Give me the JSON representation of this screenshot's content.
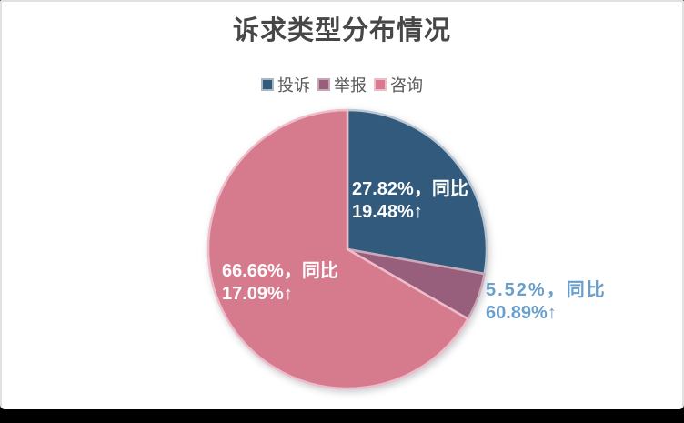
{
  "title": "诉求类型分布情况",
  "legend": {
    "items": [
      {
        "label": "投诉",
        "color": "#325a7c",
        "border_color": "#a6b8c6"
      },
      {
        "label": "举报",
        "color": "#985f7d",
        "border_color": "#c5a5b6"
      },
      {
        "label": "咨询",
        "color": "#d67b8e",
        "border_color": "#eebdc9"
      }
    ]
  },
  "chart_data": {
    "type": "pie",
    "title": "诉求类型分布情况",
    "legend_position": "top-center",
    "start_angle_deg": 0,
    "direction": "clockwise",
    "categories": [
      "投诉",
      "举报",
      "咨询"
    ],
    "values": [
      27.82,
      5.52,
      66.66
    ],
    "unit": "%",
    "colors": [
      "#325a7c",
      "#985f7d",
      "#d67b8e"
    ],
    "slice_stroke_colors": [
      "#b9c7d4",
      "#c9aaba",
      "#eebdc9"
    ],
    "yoy_change": [
      "19.48%↑",
      "60.89%↑",
      "17.09%↑"
    ],
    "labels": [
      {
        "category": "投诉",
        "line1": "27.82%，同比",
        "line2": "19.48%↑",
        "text_color": "#ffffff",
        "placement": "inside"
      },
      {
        "category": "举报",
        "line1": "5.52%，同比",
        "line2": "60.89%↑",
        "text_color": "#6a9ecb",
        "placement": "outside-right"
      },
      {
        "category": "咨询",
        "line1": "66.66%，同比",
        "line2": "17.09%↑",
        "text_color": "#ffffff",
        "placement": "inside"
      }
    ]
  },
  "page": {
    "background": "#ffffff",
    "border_color": "#e1e1e1",
    "bottom_bar_color": "#000000"
  }
}
